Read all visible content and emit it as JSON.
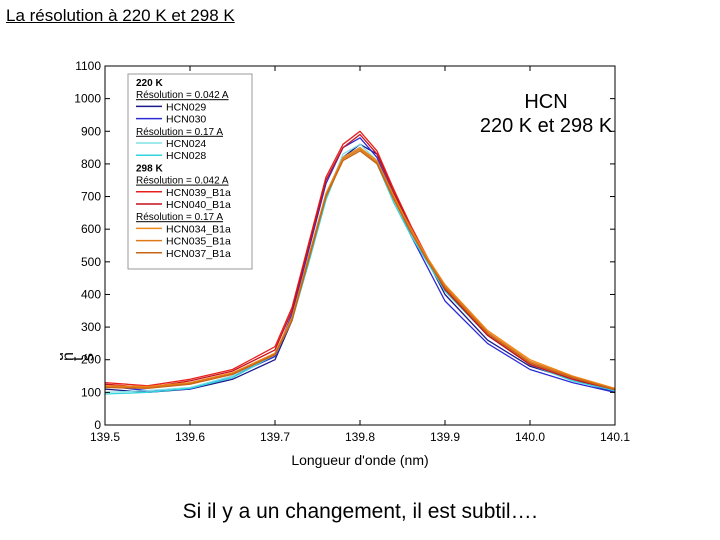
{
  "slide": {
    "title": "La résolution à 220 K et 298 K",
    "caption": "Si il y a un changement, il est subtil…."
  },
  "chart_data": {
    "type": "line",
    "title": "HCN\n220 K et 298 K",
    "xlabel": "Longueur d'onde (nm)",
    "ylabel": "C\no\nu\nn\nt\ns",
    "xlim": [
      139.5,
      140.1
    ],
    "ylim": [
      0,
      1100
    ],
    "x_ticks": [
      "139.5",
      "139.6",
      "139.7",
      "139.8",
      "139.9",
      "140.0",
      "140.1"
    ],
    "y_ticks": [
      "0",
      "100",
      "200",
      "300",
      "400",
      "500",
      "600",
      "700",
      "800",
      "900",
      "1000",
      "1100"
    ],
    "grid": false,
    "legend_position": "top-left",
    "legend": [
      {
        "kind": "header",
        "text": "220 K"
      },
      {
        "kind": "subheader",
        "text": "Résolution = 0.042 A"
      },
      {
        "kind": "series",
        "text": "HCN029",
        "color": "#1a1a8c"
      },
      {
        "kind": "series",
        "text": "HCN030",
        "color": "#2b2bd6"
      },
      {
        "kind": "subheader",
        "text": "Résolution = 0.17 A"
      },
      {
        "kind": "series",
        "text": "HCN024",
        "color": "#7fe0e6"
      },
      {
        "kind": "series",
        "text": "HCN028",
        "color": "#2fd4dc"
      },
      {
        "kind": "header",
        "text": "298 K"
      },
      {
        "kind": "subheader",
        "text": "Résolution = 0.042 A"
      },
      {
        "kind": "series",
        "text": "HCN039_B1a",
        "color": "#e8201c"
      },
      {
        "kind": "series",
        "text": "HCN040_B1a",
        "color": "#c8101c"
      },
      {
        "kind": "subheader",
        "text": "Résolution = 0.17 A"
      },
      {
        "kind": "series",
        "text": "HCN034_B1a",
        "color": "#f08a1c"
      },
      {
        "kind": "series",
        "text": "HCN035_B1a",
        "color": "#e07818"
      },
      {
        "kind": "series",
        "text": "HCN037_B1a",
        "color": "#c86414"
      }
    ],
    "series": [
      {
        "name": "HCN029",
        "color": "#1a1a8c",
        "x": [
          139.5,
          139.55,
          139.6,
          139.65,
          139.7,
          139.72,
          139.74,
          139.76,
          139.78,
          139.8,
          139.82,
          139.84,
          139.86,
          139.88,
          139.9,
          139.95,
          140.0,
          140.05,
          140.1
        ],
        "y": [
          110,
          100,
          110,
          140,
          200,
          320,
          520,
          700,
          820,
          860,
          830,
          720,
          600,
          500,
          400,
          260,
          180,
          140,
          100
        ]
      },
      {
        "name": "HCN030",
        "color": "#2b2bd6",
        "x": [
          139.5,
          139.55,
          139.6,
          139.65,
          139.7,
          139.72,
          139.74,
          139.76,
          139.78,
          139.8,
          139.82,
          139.84,
          139.86,
          139.88,
          139.9,
          139.95,
          140.0,
          140.05,
          140.1
        ],
        "y": [
          120,
          105,
          110,
          150,
          210,
          340,
          540,
          740,
          850,
          880,
          820,
          700,
          580,
          480,
          380,
          250,
          170,
          130,
          100
        ]
      },
      {
        "name": "HCN024",
        "color": "#7fe0e6",
        "x": [
          139.5,
          139.55,
          139.6,
          139.65,
          139.7,
          139.72,
          139.74,
          139.76,
          139.78,
          139.8,
          139.82,
          139.84,
          139.86,
          139.88,
          139.9,
          139.95,
          140.0,
          140.05,
          140.1
        ],
        "y": [
          100,
          105,
          115,
          150,
          220,
          330,
          510,
          700,
          830,
          860,
          810,
          690,
          590,
          500,
          420,
          280,
          190,
          140,
          110
        ]
      },
      {
        "name": "HCN028",
        "color": "#2fd4dc",
        "x": [
          139.5,
          139.55,
          139.6,
          139.65,
          139.7,
          139.72,
          139.74,
          139.76,
          139.78,
          139.8,
          139.82,
          139.84,
          139.86,
          139.88,
          139.9,
          139.95,
          140.0,
          140.05,
          140.1
        ],
        "y": [
          95,
          100,
          112,
          145,
          215,
          320,
          500,
          690,
          820,
          850,
          800,
          680,
          580,
          495,
          410,
          275,
          185,
          135,
          105
        ]
      },
      {
        "name": "HCN039_B1a",
        "color": "#e8201c",
        "x": [
          139.5,
          139.55,
          139.6,
          139.65,
          139.7,
          139.72,
          139.74,
          139.76,
          139.78,
          139.8,
          139.82,
          139.84,
          139.86,
          139.88,
          139.9,
          139.95,
          140.0,
          140.05,
          140.1
        ],
        "y": [
          130,
          120,
          140,
          170,
          240,
          360,
          560,
          760,
          860,
          900,
          840,
          720,
          610,
          510,
          420,
          280,
          190,
          145,
          110
        ]
      },
      {
        "name": "HCN040_B1a",
        "color": "#c8101c",
        "x": [
          139.5,
          139.55,
          139.6,
          139.65,
          139.7,
          139.72,
          139.74,
          139.76,
          139.78,
          139.8,
          139.82,
          139.84,
          139.86,
          139.88,
          139.9,
          139.95,
          140.0,
          140.05,
          140.1
        ],
        "y": [
          125,
          115,
          135,
          165,
          230,
          350,
          550,
          750,
          850,
          890,
          830,
          710,
          600,
          505,
          415,
          275,
          185,
          140,
          108
        ]
      },
      {
        "name": "HCN034_B1a",
        "color": "#f08a1c",
        "x": [
          139.5,
          139.55,
          139.6,
          139.65,
          139.7,
          139.72,
          139.74,
          139.76,
          139.78,
          139.8,
          139.82,
          139.84,
          139.86,
          139.88,
          139.9,
          139.95,
          140.0,
          140.05,
          140.1
        ],
        "y": [
          120,
          118,
          130,
          160,
          220,
          330,
          520,
          710,
          820,
          850,
          810,
          700,
          600,
          510,
          430,
          290,
          200,
          150,
          112
        ]
      },
      {
        "name": "HCN035_B1a",
        "color": "#e07818",
        "x": [
          139.5,
          139.55,
          139.6,
          139.65,
          139.7,
          139.72,
          139.74,
          139.76,
          139.78,
          139.8,
          139.82,
          139.84,
          139.86,
          139.88,
          139.9,
          139.95,
          140.0,
          140.05,
          140.1
        ],
        "y": [
          118,
          115,
          128,
          158,
          218,
          325,
          515,
          705,
          815,
          845,
          805,
          695,
          595,
          505,
          425,
          285,
          195,
          148,
          110
        ]
      },
      {
        "name": "HCN037_B1a",
        "color": "#c86414",
        "x": [
          139.5,
          139.55,
          139.6,
          139.65,
          139.7,
          139.72,
          139.74,
          139.76,
          139.78,
          139.8,
          139.82,
          139.84,
          139.86,
          139.88,
          139.9,
          139.95,
          140.0,
          140.05,
          140.1
        ],
        "y": [
          115,
          112,
          125,
          155,
          215,
          320,
          510,
          700,
          810,
          840,
          800,
          690,
          590,
          500,
          420,
          280,
          190,
          145,
          108
        ]
      }
    ]
  }
}
